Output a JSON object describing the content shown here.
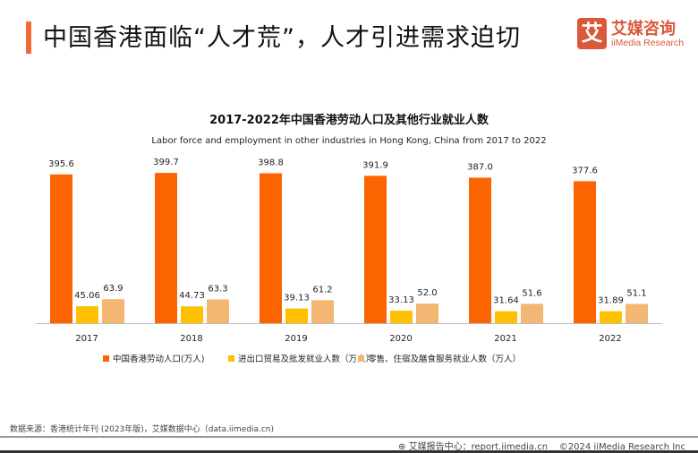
{
  "header": {
    "title": "中国香港面临“人才荒”，人才引进需求迫切"
  },
  "logo": {
    "mark": "艾",
    "cn": "艾媒咨询",
    "en": "iiMedia Research"
  },
  "chart_data": {
    "type": "bar",
    "title": "2017-2022年中国香港劳动人口及其他行业就业人数",
    "subtitle": "Labor force and employment in other industries in Hong Kong, China from 2017 to 2022",
    "categories": [
      "2017",
      "2018",
      "2019",
      "2020",
      "2021",
      "2022"
    ],
    "series": [
      {
        "name": "中国香港劳动人口(万人)",
        "color": "#fb6400",
        "values": [
          "395.6",
          "399.7",
          "398.8",
          "391.9",
          "387.0",
          "377.6"
        ]
      },
      {
        "name": "进出口贸易及批发就业人数（万人）",
        "color": "#ffc000",
        "values": [
          "45.06",
          "44.73",
          "39.13",
          "33.13",
          "31.64",
          "31.89"
        ]
      },
      {
        "name": "零售、住宿及膳食服务就业人数（万人）",
        "color": "#f4b673",
        "values": [
          "63.9",
          "63.3",
          "61.2",
          "52.0",
          "51.6",
          "51.1"
        ]
      }
    ],
    "ylim": [
      0,
      400
    ],
    "legend": "bottom",
    "grid": false
  },
  "footer": {
    "source": "数据来源：香港统计年刊 (2023年版)，艾媒数据中心（data.iimedia.cn)",
    "report": "艾媒报告中心：report.iimedia.cn",
    "copyright": "©2024  iiMedia Research  Inc"
  }
}
